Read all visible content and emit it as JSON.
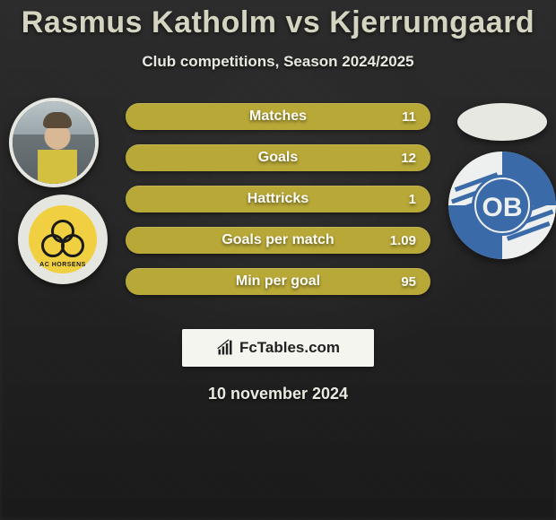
{
  "title": "Rasmus Katholm vs Kjerrumgaard",
  "subtitle": "Club competitions, Season 2024/2025",
  "date": "10 november 2024",
  "brand": "FcTables.com",
  "colors": {
    "bar_bg": "#b8a838",
    "text_light": "#fdfdf5",
    "title_color": "#d4d4c0",
    "club_left_yellow": "#f0d040",
    "club_right_blue": "#3a6aa8",
    "club_right_white": "#eef0f0"
  },
  "club_left": {
    "arc_text": "AC HORSENS"
  },
  "club_right": {
    "badge_text": "OB"
  },
  "stats": [
    {
      "label": "Matches",
      "value": "11"
    },
    {
      "label": "Goals",
      "value": "12"
    },
    {
      "label": "Hattricks",
      "value": "1"
    },
    {
      "label": "Goals per match",
      "value": "1.09"
    },
    {
      "label": "Min per goal",
      "value": "95"
    }
  ]
}
